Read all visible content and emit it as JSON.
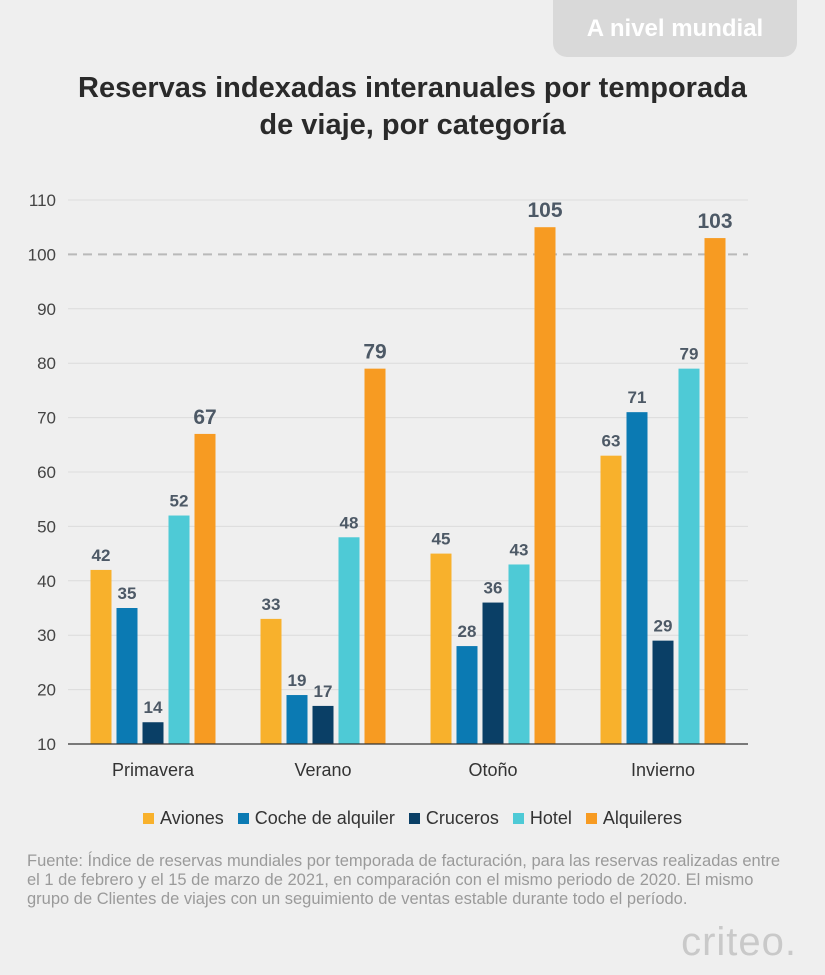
{
  "badge": "A nivel mundial",
  "title_line1": "Reservas indexadas interanuales por temporada",
  "title_line2": "de viaje, por categoría",
  "source": "Fuente: Índice de reservas mundiales por temporada de facturación, para las reservas realizadas entre el 1 de febrero y el 15 de marzo de 2021, en comparación con el mismo periodo de 2020. El mismo grupo de Clientes de viajes con un seguimiento de ventas estable durante todo el período.",
  "logo": "criteo.",
  "chart_data": {
    "type": "bar",
    "categories": [
      "Primavera",
      "Verano",
      "Otoño",
      "Invierno"
    ],
    "series": [
      {
        "name": "Aviones",
        "color": "#f8b12c",
        "values": [
          42,
          33,
          45,
          63
        ]
      },
      {
        "name": "Coche de alquiler",
        "color": "#0b7ab3",
        "values": [
          35,
          19,
          28,
          71
        ]
      },
      {
        "name": "Cruceros",
        "color": "#0a3f66",
        "values": [
          14,
          17,
          36,
          29
        ]
      },
      {
        "name": "Hotel",
        "color": "#4ecad6",
        "values": [
          52,
          48,
          43,
          79
        ]
      },
      {
        "name": "Alquileres",
        "color": "#f79b22",
        "values": [
          67,
          79,
          105,
          103
        ]
      }
    ],
    "ylim": [
      10,
      110
    ],
    "yticks": [
      10,
      20,
      30,
      40,
      50,
      60,
      70,
      80,
      90,
      100,
      110
    ],
    "reference_line": 100,
    "grid": true,
    "legend_position": "bottom"
  }
}
